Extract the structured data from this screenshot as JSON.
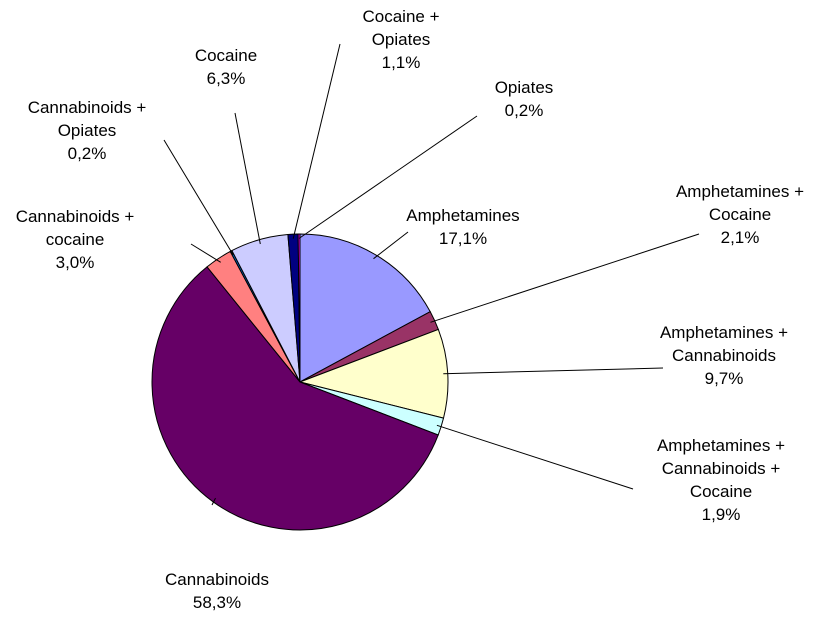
{
  "chart_data": {
    "type": "pie",
    "title": "",
    "slices": [
      {
        "name": "Amphetamines",
        "lines": [
          "Amphetamines"
        ],
        "value_text": "17,1%",
        "value": 17.1,
        "color": "#9999ff"
      },
      {
        "name": "Amphetamines + Cocaine",
        "lines": [
          "Amphetamines +",
          "Cocaine"
        ],
        "value_text": "2,1%",
        "value": 2.1,
        "color": "#993366"
      },
      {
        "name": "Amphetamines + Cannabinoids",
        "lines": [
          "Amphetamines +",
          "Cannabinoids"
        ],
        "value_text": "9,7%",
        "value": 9.7,
        "color": "#ffffcc"
      },
      {
        "name": "Amphetamines + Cannabinoids + Cocaine",
        "lines": [
          "Amphetamines +",
          "Cannabinoids +",
          "Cocaine"
        ],
        "value_text": "1,9%",
        "value": 1.9,
        "color": "#ccffff"
      },
      {
        "name": "Cannabinoids",
        "lines": [
          "Cannabinoids"
        ],
        "value_text": "58,3%",
        "value": 58.3,
        "color": "#660066"
      },
      {
        "name": "Cannabinoids + cocaine",
        "lines": [
          "Cannabinoids +",
          "cocaine"
        ],
        "value_text": "3,0%",
        "value": 3.0,
        "color": "#ff8080"
      },
      {
        "name": "Cannabinoids + Opiates",
        "lines": [
          "Cannabinoids +",
          "Opiates"
        ],
        "value_text": "0,2%",
        "value": 0.2,
        "color": "#0066cc"
      },
      {
        "name": "Cocaine",
        "lines": [
          "Cocaine"
        ],
        "value_text": "6,3%",
        "value": 6.3,
        "color": "#ccccff"
      },
      {
        "name": "Cocaine + Opiates",
        "lines": [
          "Cocaine +",
          "Opiates"
        ],
        "value_text": "1,1%",
        "value": 1.1,
        "color": "#000080"
      },
      {
        "name": "Opiates",
        "lines": [
          "Opiates"
        ],
        "value_text": "0,2%",
        "value": 0.2,
        "color": "#ff00ff"
      }
    ]
  }
}
